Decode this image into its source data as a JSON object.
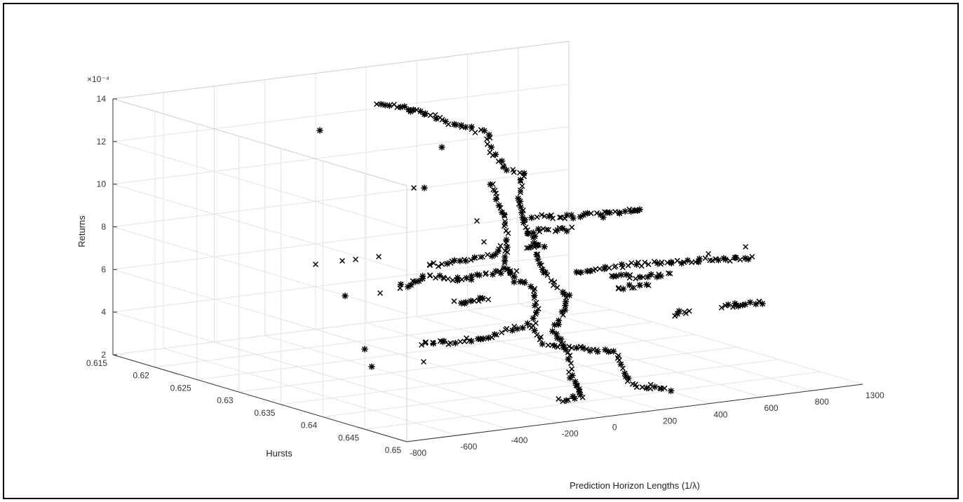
{
  "chart_data": {
    "type": "scatter",
    "projection": "3d",
    "xlabel": "Prediction Horizon Lengths (1/λ)",
    "ylabel": "Hursts",
    "zlabel": "Returns",
    "z_exponent_label": "×10⁻⁴",
    "x_ticks": [
      "-800",
      "-600",
      "-400",
      "-200",
      "0",
      "200",
      "400",
      "600",
      "800",
      "1300"
    ],
    "y_ticks": [
      "0.615",
      "0.62",
      "0.625",
      "0.63",
      "0.635",
      "0.64",
      "0.645",
      "0.65"
    ],
    "z_ticks": [
      "2",
      "4",
      "6",
      "8",
      "10",
      "12",
      "14"
    ],
    "xlim": [
      -900,
      1300
    ],
    "ylim": [
      0.615,
      0.65
    ],
    "zlim": [
      2,
      14
    ],
    "grid": true,
    "marker": "x / *",
    "marker_color": "#000000",
    "series": [
      {
        "values_note": "",
        "points": []
      }
    ]
  }
}
